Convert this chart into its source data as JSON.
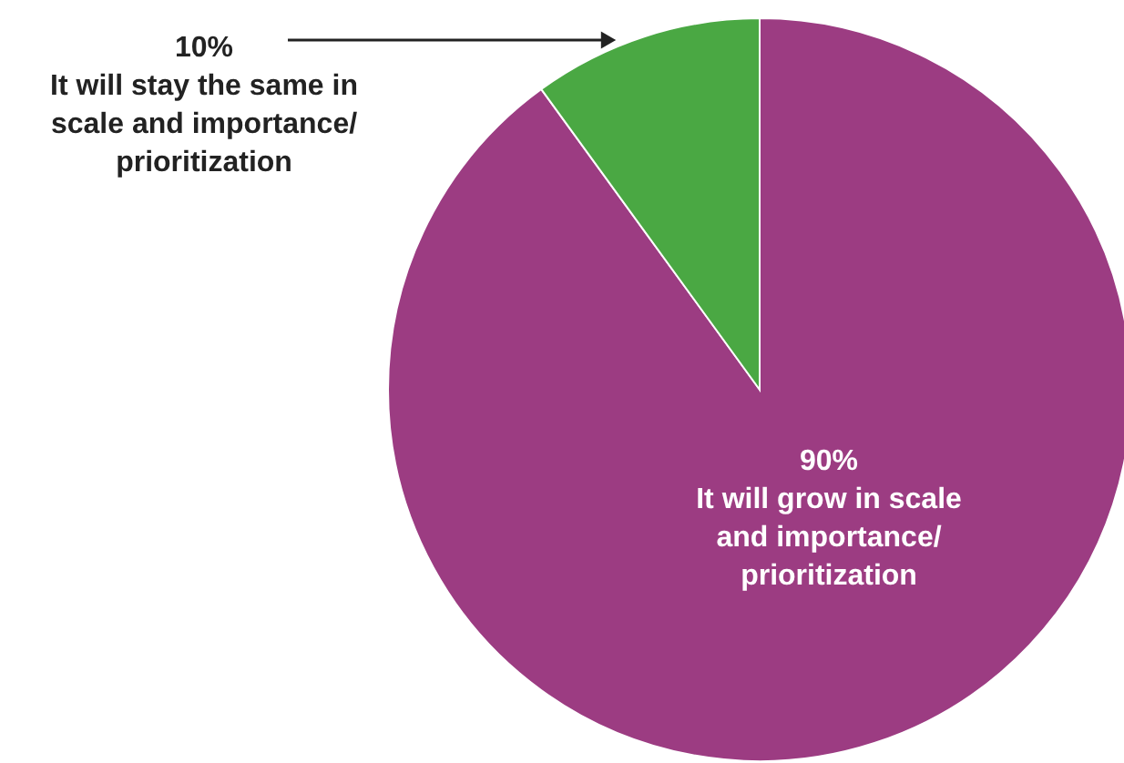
{
  "chart_data": {
    "type": "pie",
    "categories": [
      "It will grow in scale\nand importance/\nprioritization",
      "It will stay the same in\nscale and importance/\nprioritization"
    ],
    "values": [
      90,
      10
    ],
    "colors": [
      "#9c3c82",
      "#4aa843"
    ],
    "value_labels": [
      "90%",
      "10%"
    ]
  }
}
